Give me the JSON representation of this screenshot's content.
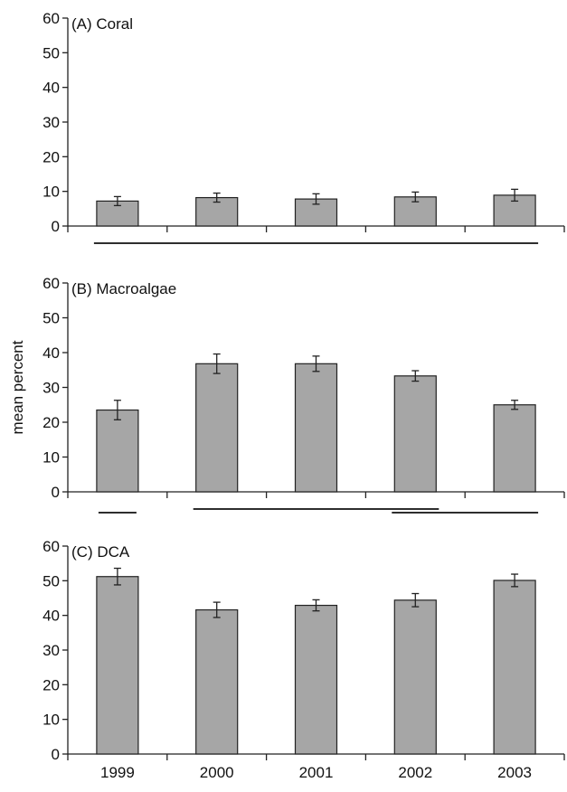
{
  "chart_data": [
    {
      "type": "bar",
      "panel_label": "(A) Coral",
      "categories": [
        "1999",
        "2000",
        "2001",
        "2002",
        "2003"
      ],
      "values": [
        7.2,
        8.2,
        7.8,
        8.4,
        8.9
      ],
      "errors": [
        1.3,
        1.3,
        1.5,
        1.4,
        1.7
      ],
      "ylim": [
        0,
        60
      ],
      "yticks": [
        "0",
        "10",
        "20",
        "30",
        "40",
        "50",
        "60"
      ],
      "ylabel": "",
      "show_xtick_labels": false,
      "significance_groups": [
        {
          "from": 0,
          "to": 4,
          "row": 0
        }
      ]
    },
    {
      "type": "bar",
      "panel_label": "(B) Macroalgae",
      "categories": [
        "1999",
        "2000",
        "2001",
        "2002",
        "2003"
      ],
      "values": [
        23.5,
        36.8,
        36.8,
        33.3,
        25.0
      ],
      "errors": [
        2.8,
        2.8,
        2.2,
        1.5,
        1.3
      ],
      "ylim": [
        0,
        60
      ],
      "yticks": [
        "0",
        "10",
        "20",
        "30",
        "40",
        "50",
        "60"
      ],
      "ylabel": "mean percent",
      "show_xtick_labels": false,
      "significance_groups": [
        {
          "from": 0,
          "to": 0,
          "row": 1
        },
        {
          "from": 1,
          "to": 3,
          "row": 0
        },
        {
          "from": 3,
          "to": 4,
          "row": 1
        }
      ]
    },
    {
      "type": "bar",
      "panel_label": "(C) DCA",
      "categories": [
        "1999",
        "2000",
        "2001",
        "2002",
        "2003"
      ],
      "values": [
        51.2,
        41.6,
        42.9,
        44.4,
        50.1
      ],
      "errors": [
        2.4,
        2.2,
        1.6,
        1.9,
        1.8
      ],
      "ylim": [
        0,
        60
      ],
      "yticks": [
        "0",
        "10",
        "20",
        "30",
        "40",
        "50",
        "60"
      ],
      "ylabel": "",
      "show_xtick_labels": true,
      "significance_groups": [
        {
          "from": 1,
          "to": 4,
          "row": 1
        }
      ]
    }
  ]
}
